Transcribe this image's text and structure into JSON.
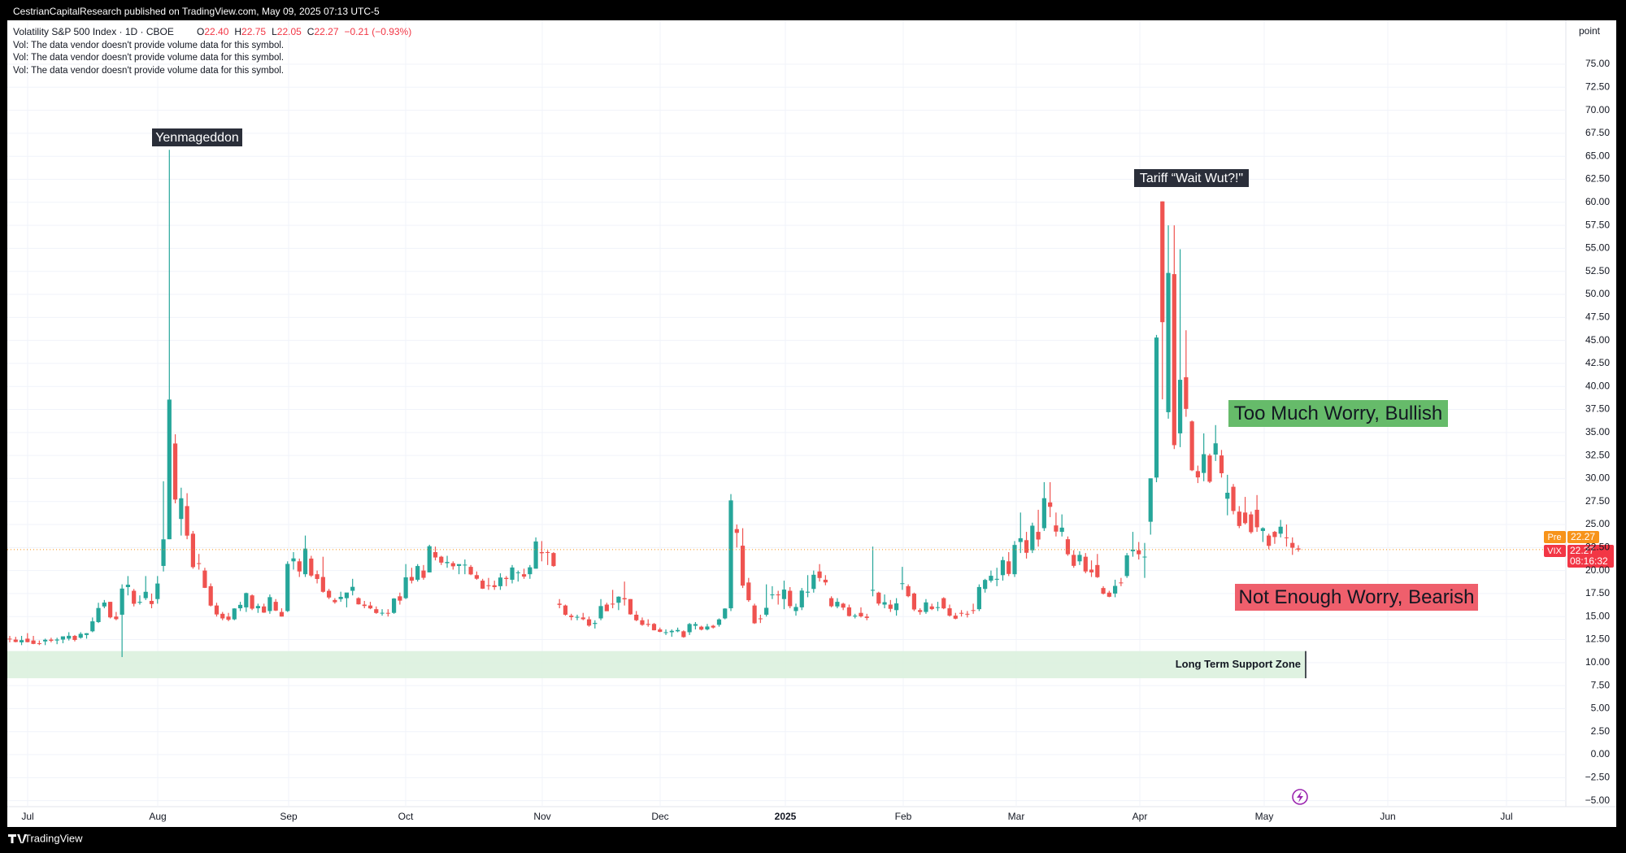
{
  "chart_data": {
    "type": "candlestick",
    "published": "CestrianCapitalResearch published on TradingView.com, May 09, 2025 07:13 UTC-5",
    "title": "Volatility S&P 500 Index · 1D · CBOE",
    "legend": [
      {
        "label": "O",
        "value": "22.40"
      },
      {
        "label": "H",
        "value": "22.75"
      },
      {
        "label": "L",
        "value": "22.05"
      },
      {
        "label": "C",
        "value": "22.27"
      }
    ],
    "change": "−0.21 (−0.93%)",
    "notices": [
      "Vol: The data vendor doesn't provide volume data for this symbol.",
      "Vol: The data vendor doesn't provide volume data for this symbol.",
      "Vol: The data vendor doesn't provide volume data for this symbol."
    ],
    "unit_label": "point",
    "up_color": "#26a69a",
    "down_color": "#ef5350",
    "grid": true,
    "ylim": [
      -5.65,
      79.77
    ],
    "yticks": [
      {
        "value": 75,
        "label": "75.00"
      },
      {
        "value": 72.5,
        "label": "72.50"
      },
      {
        "value": 70,
        "label": "70.00"
      },
      {
        "value": 67.5,
        "label": "67.50"
      },
      {
        "value": 65,
        "label": "65.00"
      },
      {
        "value": 62.5,
        "label": "62.50"
      },
      {
        "value": 60,
        "label": "60.00"
      },
      {
        "value": 57.5,
        "label": "57.50"
      },
      {
        "value": 55,
        "label": "55.00"
      },
      {
        "value": 52.5,
        "label": "52.50"
      },
      {
        "value": 50,
        "label": "50.00"
      },
      {
        "value": 47.5,
        "label": "47.50"
      },
      {
        "value": 45,
        "label": "45.00"
      },
      {
        "value": 42.5,
        "label": "42.50"
      },
      {
        "value": 40,
        "label": "40.00"
      },
      {
        "value": 37.5,
        "label": "37.50"
      },
      {
        "value": 35,
        "label": "35.00"
      },
      {
        "value": 32.5,
        "label": "32.50"
      },
      {
        "value": 30,
        "label": "30.00"
      },
      {
        "value": 27.5,
        "label": "27.50"
      },
      {
        "value": 25,
        "label": "25.00"
      },
      {
        "value": 22.5,
        "label": "22.50"
      },
      {
        "value": 20,
        "label": "20.00"
      },
      {
        "value": 17.5,
        "label": "17.50"
      },
      {
        "value": 15,
        "label": "15.00"
      },
      {
        "value": 12.5,
        "label": "12.50"
      },
      {
        "value": 10,
        "label": "10.00"
      },
      {
        "value": 7.5,
        "label": "7.50"
      },
      {
        "value": 5,
        "label": "5.00"
      },
      {
        "value": 2.5,
        "label": "2.50"
      },
      {
        "value": 0,
        "label": "0.00"
      },
      {
        "value": -2.5,
        "label": "−2.50"
      },
      {
        "value": -5,
        "label": "−5.00"
      }
    ],
    "x_labels": [
      "Jul",
      "Aug",
      "Sep",
      "Oct",
      "Nov",
      "Dec",
      "2025",
      "Feb",
      "Mar",
      "Apr",
      "May",
      "Jun",
      "Jul"
    ],
    "candles": [
      [
        12.6,
        12.9,
        12.2,
        12.55
      ],
      [
        12.5,
        12.8,
        12.2,
        12.24
      ],
      [
        12.2,
        12.9,
        11.9,
        12.44
      ],
      [
        12.6,
        13.2,
        12.2,
        12.22
      ],
      [
        12.4,
        12.9,
        12.0,
        12.03
      ],
      [
        12.1,
        12.4,
        11.9,
        12.09
      ],
      [
        12.3,
        12.6,
        11.9,
        12.48
      ],
      [
        12.5,
        12.7,
        12.2,
        12.37
      ],
      [
        12.4,
        12.7,
        12.0,
        12.51
      ],
      [
        12.5,
        12.6,
        12.1,
        12.85
      ],
      [
        12.6,
        13.3,
        12.4,
        12.91
      ],
      [
        12.9,
        13.0,
        12.3,
        12.46
      ],
      [
        12.7,
        13.3,
        12.6,
        13.12
      ],
      [
        13.0,
        13.2,
        12.6,
        13.19
      ],
      [
        13.4,
        14.9,
        13.3,
        14.48
      ],
      [
        14.4,
        16.5,
        14.3,
        15.93
      ],
      [
        16.1,
        16.8,
        15.9,
        16.52
      ],
      [
        16.6,
        16.6,
        14.8,
        14.91
      ],
      [
        15.0,
        15.5,
        14.6,
        14.72
      ],
      [
        15.2,
        18.5,
        10.6,
        18.04
      ],
      [
        18.2,
        19.4,
        17.3,
        18.46
      ],
      [
        17.8,
        18.0,
        16.1,
        16.39
      ],
      [
        16.5,
        17.3,
        16.3,
        16.6
      ],
      [
        17.0,
        19.4,
        16.8,
        17.69
      ],
      [
        16.7,
        17.5,
        15.9,
        16.36
      ],
      [
        16.9,
        19.4,
        16.4,
        18.59
      ],
      [
        20.5,
        29.7,
        19.9,
        23.39
      ],
      [
        23.4,
        65.7,
        23.4,
        38.57
      ],
      [
        33.8,
        34.8,
        27.3,
        27.71
      ],
      [
        25.6,
        29.0,
        23.8,
        27.85
      ],
      [
        27.0,
        28.4,
        23.4,
        23.79
      ],
      [
        24.0,
        24.3,
        20.2,
        20.37
      ],
      [
        20.8,
        21.8,
        20.1,
        20.71
      ],
      [
        20.0,
        20.3,
        18.1,
        18.12
      ],
      [
        18.3,
        18.6,
        16.1,
        16.19
      ],
      [
        16.2,
        16.5,
        15.0,
        15.23
      ],
      [
        15.3,
        15.5,
        14.6,
        14.8
      ],
      [
        15.0,
        15.4,
        14.5,
        14.65
      ],
      [
        14.7,
        15.9,
        14.6,
        15.88
      ],
      [
        15.9,
        16.6,
        15.6,
        16.27
      ],
      [
        16.0,
        17.6,
        15.5,
        17.55
      ],
      [
        17.3,
        17.4,
        15.7,
        15.86
      ],
      [
        15.9,
        16.4,
        15.4,
        16.15
      ],
      [
        16.1,
        16.4,
        15.4,
        15.43
      ],
      [
        15.6,
        17.4,
        15.3,
        17.11
      ],
      [
        16.6,
        16.9,
        15.6,
        15.65
      ],
      [
        15.5,
        15.9,
        15.0,
        15.0
      ],
      [
        15.6,
        21.0,
        15.5,
        20.72
      ],
      [
        21.0,
        22.0,
        20.1,
        21.32
      ],
      [
        21.0,
        21.3,
        19.3,
        19.9
      ],
      [
        19.6,
        23.8,
        19.3,
        22.38
      ],
      [
        21.3,
        21.6,
        19.3,
        19.45
      ],
      [
        19.6,
        20.0,
        18.6,
        19.08
      ],
      [
        19.3,
        21.5,
        17.6,
        17.69
      ],
      [
        17.8,
        18.0,
        16.9,
        17.07
      ],
      [
        16.8,
        17.0,
        16.4,
        16.56
      ],
      [
        16.9,
        17.7,
        16.6,
        17.14
      ],
      [
        17.0,
        17.4,
        16.0,
        17.61
      ],
      [
        17.8,
        19.1,
        17.3,
        18.23
      ],
      [
        17.0,
        17.1,
        16.3,
        16.33
      ],
      [
        16.3,
        16.7,
        15.9,
        16.15
      ],
      [
        16.2,
        16.6,
        15.8,
        15.89
      ],
      [
        15.8,
        16.1,
        15.3,
        15.39
      ],
      [
        15.4,
        15.8,
        15.1,
        15.41
      ],
      [
        15.4,
        15.8,
        15.0,
        15.37
      ],
      [
        15.4,
        17.0,
        15.3,
        16.96
      ],
      [
        17.2,
        17.6,
        16.3,
        16.73
      ],
      [
        17.0,
        20.7,
        16.9,
        19.26
      ],
      [
        19.3,
        20.3,
        18.6,
        18.9
      ],
      [
        19.0,
        20.7,
        18.8,
        20.49
      ],
      [
        20.0,
        20.6,
        19.0,
        19.21
      ],
      [
        19.8,
        22.8,
        19.8,
        22.64
      ],
      [
        22.0,
        22.6,
        21.1,
        21.42
      ],
      [
        21.5,
        21.6,
        20.6,
        20.86
      ],
      [
        20.8,
        21.6,
        20.3,
        20.93
      ],
      [
        20.8,
        21.0,
        20.1,
        20.46
      ],
      [
        20.5,
        20.6,
        19.6,
        20.7
      ],
      [
        20.6,
        21.2,
        19.6,
        20.64
      ],
      [
        20.4,
        20.6,
        19.5,
        19.58
      ],
      [
        19.5,
        19.9,
        19.0,
        19.11
      ],
      [
        18.9,
        19.1,
        18.0,
        18.03
      ],
      [
        18.4,
        19.2,
        17.9,
        18.37
      ],
      [
        18.4,
        18.9,
        17.9,
        18.2
      ],
      [
        18.3,
        19.7,
        17.9,
        19.24
      ],
      [
        19.2,
        19.4,
        18.3,
        19.08
      ],
      [
        19.0,
        20.6,
        18.6,
        20.33
      ],
      [
        19.8,
        20.0,
        18.8,
        19.8
      ],
      [
        19.6,
        20.2,
        19.1,
        19.34
      ],
      [
        19.6,
        20.6,
        19.1,
        20.35
      ],
      [
        20.2,
        23.6,
        20.2,
        23.16
      ],
      [
        22.0,
        23.2,
        21.0,
        21.88
      ],
      [
        22.0,
        22.2,
        20.6,
        21.98
      ],
      [
        21.9,
        22.0,
        20.4,
        20.49
      ],
      [
        16.4,
        16.9,
        15.9,
        16.27
      ],
      [
        16.2,
        16.3,
        15.1,
        15.2
      ],
      [
        15.1,
        15.3,
        14.6,
        14.94
      ],
      [
        14.9,
        15.2,
        14.6,
        14.97
      ],
      [
        14.9,
        15.4,
        14.6,
        14.71
      ],
      [
        14.7,
        15.0,
        13.9,
        14.02
      ],
      [
        14.2,
        14.6,
        13.7,
        14.31
      ],
      [
        14.8,
        16.9,
        14.6,
        16.14
      ],
      [
        16.3,
        16.5,
        15.6,
        15.58
      ],
      [
        16.4,
        17.9,
        15.9,
        16.35
      ],
      [
        16.5,
        17.2,
        15.7,
        17.16
      ],
      [
        17.0,
        18.8,
        16.2,
        16.87
      ],
      [
        16.9,
        16.9,
        15.2,
        15.24
      ],
      [
        15.2,
        15.6,
        14.5,
        14.6
      ],
      [
        14.6,
        14.9,
        14.0,
        14.1
      ],
      [
        14.2,
        14.7,
        13.9,
        14.1
      ],
      [
        14.2,
        14.3,
        13.5,
        13.51
      ],
      [
        13.6,
        13.8,
        13.3,
        13.34
      ],
      [
        13.3,
        13.6,
        13.0,
        13.3
      ],
      [
        13.3,
        13.6,
        12.8,
        13.45
      ],
      [
        13.4,
        13.8,
        13.3,
        13.54
      ],
      [
        13.4,
        13.5,
        12.7,
        12.77
      ],
      [
        13.3,
        14.3,
        13.0,
        14.19
      ],
      [
        14.0,
        14.4,
        13.6,
        14.18
      ],
      [
        13.9,
        14.0,
        13.5,
        13.58
      ],
      [
        13.6,
        14.2,
        13.5,
        13.92
      ],
      [
        14.0,
        14.1,
        13.7,
        13.81
      ],
      [
        14.1,
        14.8,
        13.9,
        14.69
      ],
      [
        14.8,
        15.9,
        14.7,
        15.87
      ],
      [
        15.9,
        28.3,
        15.6,
        27.62
      ],
      [
        24.5,
        25.0,
        22.5,
        24.09
      ],
      [
        22.7,
        24.6,
        18.1,
        18.36
      ],
      [
        18.7,
        19.2,
        16.6,
        16.78
      ],
      [
        16.2,
        16.4,
        14.2,
        14.27
      ],
      [
        14.8,
        15.2,
        14.3,
        14.73
      ],
      [
        15.2,
        18.5,
        15.0,
        15.95
      ],
      [
        17.4,
        18.3,
        16.9,
        17.4
      ],
      [
        17.4,
        17.8,
        16.3,
        17.35
      ],
      [
        16.9,
        18.9,
        15.8,
        17.93
      ],
      [
        17.8,
        18.2,
        15.9,
        16.13
      ],
      [
        15.6,
        16.4,
        15.1,
        16.04
      ],
      [
        16.0,
        18.1,
        15.7,
        17.82
      ],
      [
        17.6,
        19.5,
        17.1,
        17.7
      ],
      [
        18.0,
        20.0,
        17.6,
        19.54
      ],
      [
        19.9,
        20.7,
        18.8,
        19.19
      ],
      [
        19.0,
        19.5,
        18.4,
        18.71
      ],
      [
        17.0,
        17.2,
        16.0,
        16.12
      ],
      [
        16.1,
        17.0,
        15.9,
        16.6
      ],
      [
        16.4,
        16.5,
        15.7,
        15.97
      ],
      [
        16.0,
        16.3,
        15.0,
        15.06
      ],
      [
        15.0,
        15.3,
        14.8,
        15.1
      ],
      [
        15.4,
        16.0,
        14.9,
        15.02
      ],
      [
        15.0,
        15.3,
        14.6,
        14.85
      ],
      [
        17.9,
        22.6,
        17.2,
        17.9
      ],
      [
        17.6,
        17.7,
        16.2,
        16.41
      ],
      [
        16.3,
        17.4,
        15.9,
        16.56
      ],
      [
        16.3,
        16.8,
        15.5,
        15.84
      ],
      [
        15.7,
        17.0,
        15.1,
        16.43
      ],
      [
        18.6,
        20.4,
        17.9,
        18.62
      ],
      [
        18.3,
        18.5,
        17.1,
        17.21
      ],
      [
        17.5,
        17.6,
        15.6,
        15.77
      ],
      [
        15.7,
        15.9,
        15.2,
        15.5
      ],
      [
        15.5,
        16.9,
        15.3,
        16.54
      ],
      [
        16.1,
        16.4,
        15.7,
        15.81
      ],
      [
        16.0,
        16.6,
        15.6,
        16.02
      ],
      [
        17.0,
        17.1,
        15.8,
        15.89
      ],
      [
        15.9,
        16.3,
        15.0,
        15.1
      ],
      [
        15.1,
        15.4,
        14.7,
        14.77
      ],
      [
        15.4,
        15.7,
        15.0,
        15.35
      ],
      [
        15.3,
        15.6,
        14.9,
        15.27
      ],
      [
        15.7,
        16.4,
        15.3,
        15.66
      ],
      [
        15.8,
        18.5,
        15.6,
        18.21
      ],
      [
        18.0,
        19.1,
        17.6,
        18.98
      ],
      [
        18.9,
        20.0,
        18.7,
        19.43
      ],
      [
        19.0,
        20.3,
        18.3,
        19.1
      ],
      [
        19.5,
        21.5,
        18.9,
        21.13
      ],
      [
        21.0,
        22.0,
        19.4,
        19.63
      ],
      [
        19.6,
        23.2,
        19.3,
        22.78
      ],
      [
        23.1,
        26.3,
        21.9,
        23.51
      ],
      [
        23.3,
        24.2,
        21.3,
        21.93
      ],
      [
        22.2,
        25.2,
        21.9,
        24.87
      ],
      [
        24.2,
        26.6,
        22.6,
        23.37
      ],
      [
        24.6,
        29.6,
        24.3,
        27.86
      ],
      [
        27.4,
        29.6,
        25.8,
        26.92
      ],
      [
        24.9,
        26.3,
        23.7,
        24.23
      ],
      [
        24.2,
        26.1,
        23.7,
        24.66
      ],
      [
        23.4,
        23.7,
        21.6,
        21.77
      ],
      [
        21.7,
        22.2,
        20.3,
        20.51
      ],
      [
        21.0,
        22.1,
        20.6,
        21.7
      ],
      [
        21.5,
        21.9,
        19.7,
        19.9
      ],
      [
        20.1,
        21.1,
        19.3,
        19.8
      ],
      [
        20.6,
        21.8,
        19.2,
        19.28
      ],
      [
        18.1,
        18.3,
        17.4,
        17.48
      ],
      [
        17.6,
        17.8,
        17.1,
        17.15
      ],
      [
        17.5,
        19.0,
        17.1,
        18.33
      ],
      [
        18.7,
        19.2,
        18.3,
        18.69
      ],
      [
        19.4,
        21.9,
        19.2,
        21.65
      ],
      [
        22.1,
        24.2,
        21.5,
        22.28
      ],
      [
        22.2,
        23.1,
        21.2,
        21.77
      ],
      [
        21.5,
        23.0,
        19.2,
        21.51
      ],
      [
        25.3,
        30.0,
        23.9,
        30.02
      ],
      [
        30.1,
        45.6,
        29.6,
        45.31
      ],
      [
        60.1,
        60.1,
        38.6,
        46.98
      ],
      [
        37.2,
        57.5,
        36.5,
        52.33
      ],
      [
        52.2,
        57.5,
        33.2,
        33.62
      ],
      [
        34.9,
        54.9,
        33.4,
        40.72
      ],
      [
        41.0,
        46.1,
        36.7,
        37.56
      ],
      [
        36.2,
        36.3,
        30.8,
        30.89
      ],
      [
        30.8,
        31.4,
        29.5,
        30.12
      ],
      [
        30.6,
        34.9,
        29.7,
        32.64
      ],
      [
        32.5,
        32.7,
        29.5,
        29.65
      ],
      [
        32.6,
        35.8,
        31.9,
        33.82
      ],
      [
        32.5,
        33.1,
        30.1,
        30.57
      ],
      [
        27.8,
        30.4,
        26.0,
        28.45
      ],
      [
        29.1,
        29.4,
        26.1,
        26.47
      ],
      [
        26.4,
        27.0,
        24.6,
        24.84
      ],
      [
        26.3,
        28.0,
        25.0,
        25.15
      ],
      [
        26.1,
        26.4,
        24.0,
        24.17
      ],
      [
        26.6,
        28.2,
        24.2,
        24.7
      ],
      [
        24.3,
        24.7,
        23.1,
        24.6
      ],
      [
        23.8,
        24.0,
        22.3,
        22.68
      ],
      [
        24.2,
        24.3,
        22.9,
        23.64
      ],
      [
        24.0,
        25.5,
        23.6,
        24.76
      ],
      [
        23.6,
        25.0,
        22.6,
        23.55
      ],
      [
        23.0,
        23.6,
        21.7,
        22.48
      ],
      [
        22.4,
        22.75,
        22.05,
        22.27
      ]
    ],
    "annotations": [
      {
        "text": "Yenmageddon",
        "style": "dark"
      },
      {
        "text": "Tariff “Wait Wut?!\"",
        "style": "dark"
      },
      {
        "text": "Too Much Worry, Bullish",
        "style": "green"
      },
      {
        "text": "Not Enough Worry, Bearish",
        "style": "red"
      }
    ],
    "support_zone": {
      "label": "Long Term Support Zone",
      "range": [
        8.3,
        11.25
      ]
    },
    "price_tags": {
      "pre_label": "Pre",
      "pre_value": "22.27",
      "symbol": "VIX",
      "value": "22.27",
      "countdown": "08:16:32"
    },
    "branding": "TradingView"
  }
}
